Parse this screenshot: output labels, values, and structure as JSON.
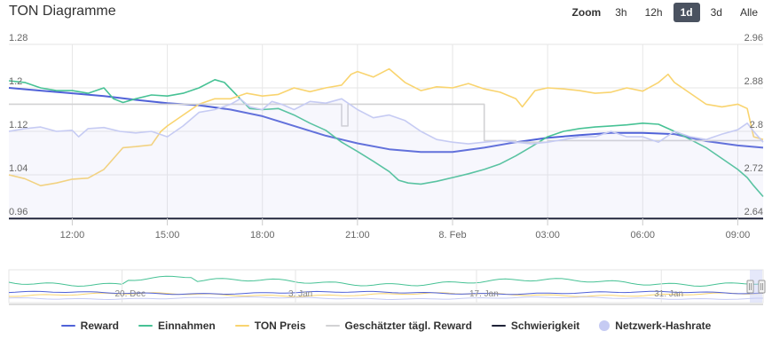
{
  "title": "TON Diagramme",
  "zoom": {
    "label": "Zoom",
    "options": [
      "3h",
      "12h",
      "1d",
      "3d",
      "Alle"
    ],
    "selected": "1d"
  },
  "legend": [
    {
      "name": "Reward",
      "color": "#5062d8",
      "shape": "line"
    },
    {
      "name": "Einnahmen",
      "color": "#47c295",
      "shape": "line"
    },
    {
      "name": "TON Preis",
      "color": "#f9d46f",
      "shape": "line"
    },
    {
      "name": "Geschätzter tägl. Reward",
      "color": "#d2d2d4",
      "shape": "line"
    },
    {
      "name": "Schwierigkeit",
      "color": "#1f2338",
      "shape": "line"
    },
    {
      "name": "Netzwerk-Hashrate",
      "color": "#c6cbf3",
      "shape": "dot"
    }
  ],
  "chart_data": {
    "type": "line",
    "x_axis": {
      "unit": "hours since 10:00",
      "range": [
        0,
        23.8
      ],
      "tick_labels": [
        "12:00",
        "15:00",
        "18:00",
        "21:00",
        "8. Feb",
        "03:00",
        "06:00",
        "09:00"
      ],
      "tick_positions": [
        2,
        5,
        8,
        11,
        14,
        17,
        20,
        23
      ]
    },
    "y_left": {
      "range": [
        0.96,
        1.28
      ],
      "tick_labels": [
        "0.96",
        "1.04",
        "1.12",
        "1.2",
        "1.28"
      ],
      "ticks": [
        0.96,
        1.04,
        1.12,
        1.2,
        1.28
      ]
    },
    "y_right": {
      "range": [
        2.64,
        2.96
      ],
      "tick_labels": [
        "2.64",
        "2.72",
        "2.8",
        "2.88",
        "2.96"
      ],
      "ticks": [
        2.64,
        2.72,
        2.8,
        2.88,
        2.96
      ]
    },
    "grid": true,
    "series": [
      {
        "name": "Reward",
        "axis": "left",
        "color": "#5062d8",
        "points": [
          [
            0,
            1.2
          ],
          [
            1,
            1.195
          ],
          [
            2,
            1.19
          ],
          [
            3,
            1.185
          ],
          [
            4,
            1.178
          ],
          [
            5,
            1.172
          ],
          [
            6,
            1.168
          ],
          [
            7,
            1.16
          ],
          [
            8,
            1.148
          ],
          [
            9,
            1.13
          ],
          [
            10,
            1.112
          ],
          [
            11,
            1.098
          ],
          [
            12,
            1.087
          ],
          [
            13,
            1.082
          ],
          [
            14,
            1.082
          ],
          [
            15,
            1.09
          ],
          [
            16,
            1.1
          ],
          [
            17,
            1.108
          ],
          [
            18,
            1.113
          ],
          [
            19,
            1.117
          ],
          [
            20,
            1.117
          ],
          [
            21,
            1.115
          ],
          [
            22,
            1.102
          ],
          [
            23,
            1.094
          ],
          [
            23.8,
            1.09
          ]
        ]
      },
      {
        "name": "Einnahmen",
        "axis": "left",
        "color": "#47c295",
        "points": [
          [
            0,
            1.213
          ],
          [
            0.5,
            1.21
          ],
          [
            1,
            1.2
          ],
          [
            1.5,
            1.195
          ],
          [
            2,
            1.195
          ],
          [
            2.5,
            1.19
          ],
          [
            3,
            1.2
          ],
          [
            3.3,
            1.18
          ],
          [
            3.6,
            1.173
          ],
          [
            4,
            1.18
          ],
          [
            4.5,
            1.187
          ],
          [
            5,
            1.185
          ],
          [
            5.5,
            1.19
          ],
          [
            6,
            1.2
          ],
          [
            6.5,
            1.215
          ],
          [
            6.8,
            1.21
          ],
          [
            7.3,
            1.18
          ],
          [
            7.6,
            1.162
          ],
          [
            8,
            1.16
          ],
          [
            8.5,
            1.162
          ],
          [
            9,
            1.15
          ],
          [
            9.5,
            1.135
          ],
          [
            10,
            1.122
          ],
          [
            10.5,
            1.1
          ],
          [
            11,
            1.083
          ],
          [
            11.5,
            1.065
          ],
          [
            12,
            1.046
          ],
          [
            12.3,
            1.03
          ],
          [
            12.6,
            1.025
          ],
          [
            13,
            1.023
          ],
          [
            13.5,
            1.028
          ],
          [
            14,
            1.035
          ],
          [
            14.5,
            1.042
          ],
          [
            15,
            1.05
          ],
          [
            15.5,
            1.06
          ],
          [
            16,
            1.075
          ],
          [
            16.5,
            1.092
          ],
          [
            17,
            1.11
          ],
          [
            17.5,
            1.12
          ],
          [
            18,
            1.125
          ],
          [
            18.5,
            1.128
          ],
          [
            19,
            1.13
          ],
          [
            19.5,
            1.132
          ],
          [
            20,
            1.135
          ],
          [
            20.5,
            1.133
          ],
          [
            21,
            1.12
          ],
          [
            21.5,
            1.105
          ],
          [
            22,
            1.09
          ],
          [
            22.5,
            1.07
          ],
          [
            23,
            1.05
          ],
          [
            23.3,
            1.035
          ],
          [
            23.5,
            1.02
          ],
          [
            23.8,
            1.0
          ]
        ]
      },
      {
        "name": "TON Preis",
        "axis": "right",
        "color": "#f9d46f",
        "points": [
          [
            0,
            2.72
          ],
          [
            0.5,
            2.713
          ],
          [
            1,
            2.7
          ],
          [
            1.5,
            2.705
          ],
          [
            2,
            2.712
          ],
          [
            2.5,
            2.714
          ],
          [
            3,
            2.73
          ],
          [
            3.3,
            2.75
          ],
          [
            3.6,
            2.77
          ],
          [
            4,
            2.772
          ],
          [
            4.5,
            2.775
          ],
          [
            4.8,
            2.8
          ],
          [
            5,
            2.81
          ],
          [
            5.5,
            2.83
          ],
          [
            6,
            2.85
          ],
          [
            6.5,
            2.86
          ],
          [
            7,
            2.86
          ],
          [
            7.5,
            2.87
          ],
          [
            8,
            2.865
          ],
          [
            8.5,
            2.868
          ],
          [
            9,
            2.88
          ],
          [
            9.5,
            2.873
          ],
          [
            10,
            2.88
          ],
          [
            10.5,
            2.885
          ],
          [
            10.8,
            2.905
          ],
          [
            11,
            2.91
          ],
          [
            11.5,
            2.9
          ],
          [
            12,
            2.915
          ],
          [
            12.5,
            2.89
          ],
          [
            13,
            2.875
          ],
          [
            13.5,
            2.882
          ],
          [
            14,
            2.88
          ],
          [
            14.5,
            2.888
          ],
          [
            15,
            2.878
          ],
          [
            15.5,
            2.872
          ],
          [
            16,
            2.86
          ],
          [
            16.2,
            2.845
          ],
          [
            16.6,
            2.875
          ],
          [
            17,
            2.88
          ],
          [
            17.5,
            2.878
          ],
          [
            18,
            2.875
          ],
          [
            18.5,
            2.87
          ],
          [
            19,
            2.872
          ],
          [
            19.5,
            2.88
          ],
          [
            20,
            2.874
          ],
          [
            20.5,
            2.89
          ],
          [
            20.8,
            2.905
          ],
          [
            21,
            2.89
          ],
          [
            21.5,
            2.87
          ],
          [
            22,
            2.85
          ],
          [
            22.5,
            2.845
          ],
          [
            23,
            2.85
          ],
          [
            23.3,
            2.842
          ],
          [
            23.5,
            2.79
          ],
          [
            23.8,
            2.785
          ]
        ]
      },
      {
        "name": "Geschätzter tägl. Reward",
        "axis": "left",
        "color": "#d2d2d4",
        "points": [
          [
            0,
            1.17
          ],
          [
            10.5,
            1.17
          ],
          [
            10.5,
            1.13
          ],
          [
            10.7,
            1.13
          ],
          [
            10.7,
            1.17
          ],
          [
            15,
            1.17
          ],
          [
            15,
            1.103
          ],
          [
            16,
            1.103
          ],
          [
            16,
            1.1
          ],
          [
            17,
            1.1
          ],
          [
            17,
            1.103
          ],
          [
            23,
            1.103
          ],
          [
            23.8,
            1.103
          ]
        ]
      },
      {
        "name": "Schwierigkeit",
        "axis": "left",
        "color": "#1f2338",
        "points": [
          [
            0,
            0.96
          ],
          [
            23.8,
            0.96
          ]
        ]
      },
      {
        "name": "Netzwerk-Hashrate",
        "axis": "left",
        "color": "#c6cbf3",
        "area": true,
        "points": [
          [
            0,
            1.12
          ],
          [
            0.5,
            1.125
          ],
          [
            1,
            1.128
          ],
          [
            1.5,
            1.12
          ],
          [
            2,
            1.122
          ],
          [
            2.2,
            1.11
          ],
          [
            2.5,
            1.125
          ],
          [
            3,
            1.127
          ],
          [
            3.5,
            1.12
          ],
          [
            4,
            1.117
          ],
          [
            4.5,
            1.12
          ],
          [
            5,
            1.11
          ],
          [
            5.5,
            1.13
          ],
          [
            6,
            1.155
          ],
          [
            6.5,
            1.16
          ],
          [
            7,
            1.17
          ],
          [
            7.3,
            1.18
          ],
          [
            7.6,
            1.165
          ],
          [
            8,
            1.16
          ],
          [
            8.3,
            1.175
          ],
          [
            8.6,
            1.17
          ],
          [
            9,
            1.16
          ],
          [
            9.5,
            1.175
          ],
          [
            10,
            1.172
          ],
          [
            10.5,
            1.18
          ],
          [
            11,
            1.16
          ],
          [
            11.5,
            1.145
          ],
          [
            12,
            1.15
          ],
          [
            12.5,
            1.14
          ],
          [
            13,
            1.12
          ],
          [
            13.5,
            1.105
          ],
          [
            14,
            1.1
          ],
          [
            14.5,
            1.097
          ],
          [
            15,
            1.1
          ],
          [
            15.5,
            1.103
          ],
          [
            16,
            1.1
          ],
          [
            16.5,
            1.097
          ],
          [
            17,
            1.1
          ],
          [
            17.5,
            1.105
          ],
          [
            18,
            1.11
          ],
          [
            18.5,
            1.11
          ],
          [
            19,
            1.12
          ],
          [
            19.5,
            1.11
          ],
          [
            20,
            1.11
          ],
          [
            20.5,
            1.1
          ],
          [
            21,
            1.12
          ],
          [
            21.5,
            1.11
          ],
          [
            22,
            1.105
          ],
          [
            22.5,
            1.115
          ],
          [
            23,
            1.123
          ],
          [
            23.3,
            1.135
          ],
          [
            23.5,
            1.12
          ],
          [
            23.8,
            1.1
          ]
        ]
      }
    ],
    "navigator": {
      "tick_labels": [
        "20. Dec",
        "3. Jan",
        "17. Jan",
        "31. Jan"
      ]
    }
  }
}
